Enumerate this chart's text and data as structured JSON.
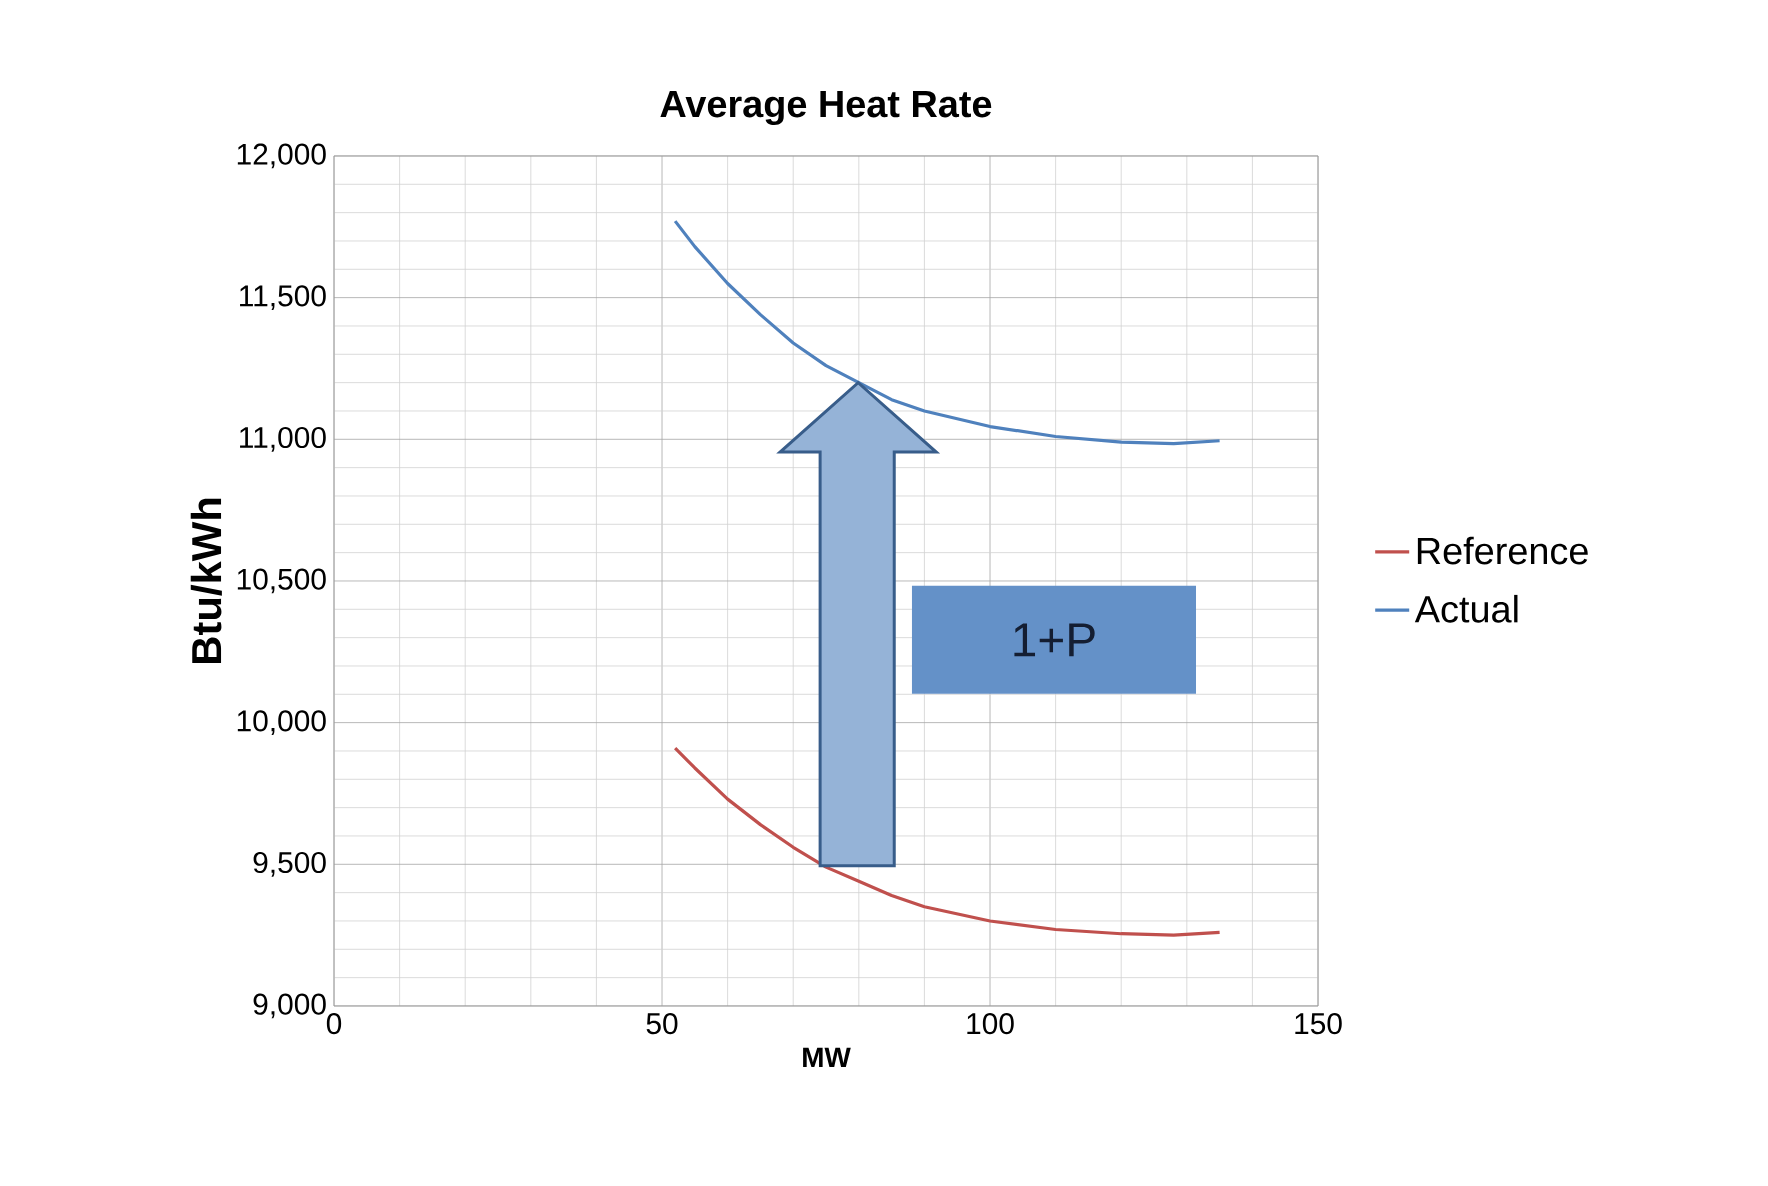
{
  "chart_data": {
    "type": "line",
    "title": "Average Heat Rate",
    "xlabel": "MW",
    "ylabel": "Btu/kWh",
    "xlim": [
      0,
      150
    ],
    "xticks": [
      0,
      50,
      100,
      150
    ],
    "ylim": [
      9000,
      12000
    ],
    "yticks": [
      {
        "value": 9000,
        "label": "9,000"
      },
      {
        "value": 9500,
        "label": "9,500"
      },
      {
        "value": 10000,
        "label": "10,000"
      },
      {
        "value": 10500,
        "label": "10,500"
      },
      {
        "value": 11000,
        "label": "11,000"
      },
      {
        "value": 11500,
        "label": "11,500"
      },
      {
        "value": 12000,
        "label": "12,000"
      }
    ],
    "grid": true,
    "legend": "right",
    "marker": "none",
    "line_style": "solid",
    "annotations": [
      "1+P"
    ],
    "series": [
      {
        "name": "Reference",
        "color": "#c0504d",
        "x": [
          52,
          55,
          60,
          65,
          70,
          75,
          80,
          85,
          90,
          100,
          110,
          120,
          128,
          135
        ],
        "values": [
          9910,
          9840,
          9730,
          9640,
          9560,
          9490,
          9440,
          9390,
          9350,
          9300,
          9270,
          9255,
          9250,
          9260
        ]
      },
      {
        "name": "Actual",
        "color": "#4f81bd",
        "x": [
          52,
          55,
          60,
          65,
          70,
          75,
          80,
          85,
          90,
          100,
          110,
          120,
          128,
          135
        ],
        "values": [
          11770,
          11680,
          11550,
          11440,
          11340,
          11260,
          11200,
          11140,
          11100,
          11045,
          11010,
          10990,
          10985,
          10995
        ]
      }
    ]
  }
}
